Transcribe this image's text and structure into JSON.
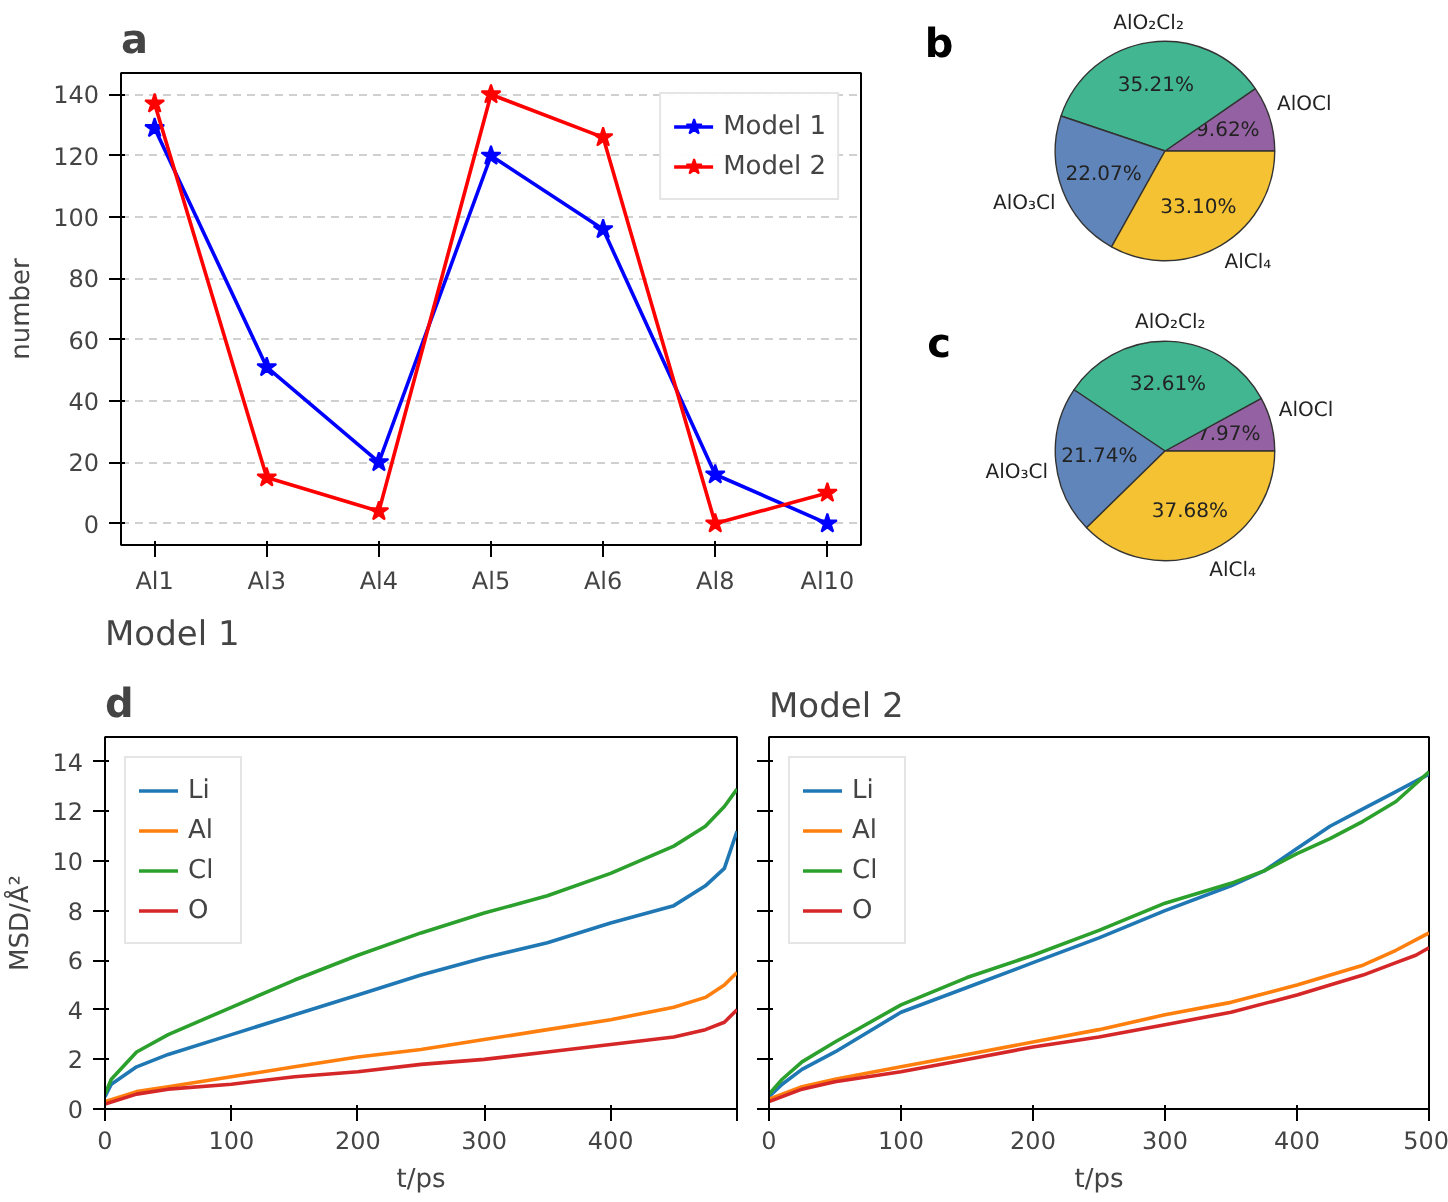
{
  "chart_data": [
    {
      "type": "line",
      "annotations": [
        "a"
      ],
      "ylabel": "number",
      "categories": [
        "Al1",
        "Al3",
        "Al4",
        "Al5",
        "Al6",
        "Al8",
        "Al10"
      ],
      "ylim": [
        -7,
        147
      ],
      "yticks": [
        0,
        20,
        40,
        60,
        80,
        100,
        120,
        140
      ],
      "grid": "y",
      "legend": "top right",
      "marker": "star",
      "series": [
        {
          "name": "Model 1",
          "color": "#0000ff",
          "values": [
            129,
            51,
            20,
            120,
            96,
            16,
            0
          ]
        },
        {
          "name": "Model 2",
          "color": "#ff0000",
          "values": [
            137,
            15,
            4,
            140,
            126,
            0,
            10
          ]
        }
      ]
    },
    {
      "type": "pie",
      "annotations": [
        "b"
      ],
      "categories": [
        "AlOCl",
        "AlO₂Cl₂",
        "AlO₃Cl",
        "AlCl₄"
      ],
      "values": [
        9.62,
        35.21,
        22.07,
        33.1
      ],
      "value_labels": [
        "9.62%",
        "35.21%",
        "22.07%",
        "33.10%"
      ],
      "colors": [
        "#9462a3",
        "#41b690",
        "#6085ba",
        "#f4c233"
      ]
    },
    {
      "type": "pie",
      "annotations": [
        "c"
      ],
      "categories": [
        "AlOCl",
        "AlO₂Cl₂",
        "AlO₃Cl",
        "AlCl₄"
      ],
      "values": [
        7.97,
        32.61,
        21.74,
        37.68
      ],
      "value_labels": [
        "7.97%",
        "32.61%",
        "21.74%",
        "37.68%"
      ],
      "colors": [
        "#9462a3",
        "#41b690",
        "#6085ba",
        "#f4c233"
      ]
    },
    {
      "type": "line",
      "annotations": [
        "d"
      ],
      "title": "Model 1",
      "xlabel": "t/ps",
      "ylabel": "MSD/Å²",
      "xlim": [
        0,
        500
      ],
      "xticks": [
        0,
        100,
        200,
        300,
        400,
        {
          "value": 500,
          "label": null
        }
      ],
      "ylim": [
        0,
        15
      ],
      "yticks": [
        0,
        2,
        4,
        6,
        8,
        10,
        12,
        14
      ],
      "legend": "top left",
      "series": [
        {
          "name": "Li",
          "color": "#1f77b4",
          "x": [
            0,
            5,
            25,
            50,
            100,
            150,
            200,
            250,
            300,
            350,
            400,
            450,
            475,
            490,
            500
          ],
          "values": [
            0.5,
            1.0,
            1.7,
            2.2,
            3.0,
            3.8,
            4.6,
            5.4,
            6.1,
            6.7,
            7.5,
            8.2,
            9.0,
            9.7,
            11.2
          ]
        },
        {
          "name": "Al",
          "color": "#ff7f0e",
          "x": [
            0,
            25,
            50,
            100,
            150,
            200,
            250,
            300,
            350,
            400,
            450,
            475,
            490,
            500
          ],
          "values": [
            0.3,
            0.7,
            0.9,
            1.3,
            1.7,
            2.1,
            2.4,
            2.8,
            3.2,
            3.6,
            4.1,
            4.5,
            5.0,
            5.5
          ]
        },
        {
          "name": "Cl",
          "color": "#2ca02c",
          "x": [
            0,
            5,
            25,
            50,
            100,
            150,
            200,
            250,
            300,
            350,
            400,
            450,
            475,
            490,
            500
          ],
          "values": [
            0.6,
            1.2,
            2.3,
            3.0,
            4.1,
            5.2,
            6.2,
            7.1,
            7.9,
            8.6,
            9.5,
            10.6,
            11.4,
            12.2,
            12.9
          ]
        },
        {
          "name": "O",
          "color": "#d62728",
          "x": [
            0,
            25,
            50,
            100,
            150,
            200,
            250,
            300,
            350,
            400,
            450,
            475,
            490,
            500
          ],
          "values": [
            0.2,
            0.6,
            0.8,
            1.0,
            1.3,
            1.5,
            1.8,
            2.0,
            2.3,
            2.6,
            2.9,
            3.2,
            3.5,
            4.0
          ]
        }
      ]
    },
    {
      "type": "line",
      "title": "Model 2",
      "xlabel": "t/ps",
      "xlim": [
        0,
        500
      ],
      "xticks": [
        0,
        100,
        200,
        300,
        400,
        500
      ],
      "ylim": [
        0,
        15
      ],
      "yticks": [
        0,
        2,
        4,
        6,
        8,
        10,
        12,
        14
      ],
      "tick_labels": "x",
      "legend": "top left",
      "series": [
        {
          "name": "Li",
          "color": "#1f77b4",
          "x": [
            0,
            10,
            25,
            50,
            100,
            150,
            200,
            250,
            300,
            350,
            375,
            400,
            425,
            450,
            475,
            500
          ],
          "values": [
            0.5,
            1.0,
            1.6,
            2.3,
            3.9,
            4.9,
            5.9,
            6.9,
            8.0,
            9.0,
            9.6,
            10.5,
            11.4,
            12.1,
            12.8,
            13.5
          ]
        },
        {
          "name": "Al",
          "color": "#ff7f0e",
          "x": [
            0,
            25,
            50,
            100,
            150,
            200,
            250,
            300,
            350,
            400,
            450,
            475,
            500
          ],
          "values": [
            0.4,
            0.9,
            1.2,
            1.7,
            2.2,
            2.7,
            3.2,
            3.8,
            4.3,
            5.0,
            5.8,
            6.4,
            7.1
          ]
        },
        {
          "name": "Cl",
          "color": "#2ca02c",
          "x": [
            0,
            10,
            25,
            50,
            100,
            150,
            200,
            250,
            300,
            350,
            375,
            400,
            425,
            450,
            475,
            500
          ],
          "values": [
            0.6,
            1.2,
            1.9,
            2.7,
            4.2,
            5.3,
            6.2,
            7.2,
            8.3,
            9.1,
            9.6,
            10.3,
            10.9,
            11.6,
            12.4,
            13.6
          ]
        },
        {
          "name": "O",
          "color": "#d62728",
          "x": [
            0,
            25,
            50,
            100,
            150,
            200,
            250,
            300,
            350,
            400,
            450,
            475,
            490,
            500
          ],
          "values": [
            0.3,
            0.8,
            1.1,
            1.5,
            2.0,
            2.5,
            2.9,
            3.4,
            3.9,
            4.6,
            5.4,
            5.9,
            6.2,
            6.5
          ]
        }
      ]
    }
  ]
}
